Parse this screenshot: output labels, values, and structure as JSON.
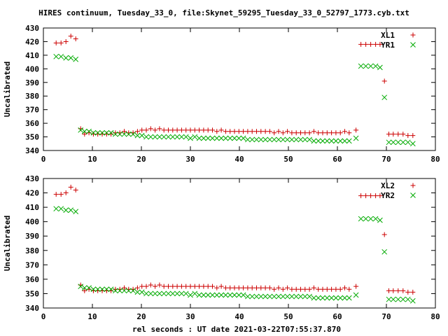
{
  "title": "HIRES continuum, Tuesday_33_0, file:Skynet_59295_Tuesday_33_0_52797_1773.cyb.txt",
  "xlabel": "rel seconds : UT date 2021-03-22T07:55:37.870",
  "colors": {
    "red": "#cc0000",
    "green": "#00aa00"
  },
  "chart_data": [
    {
      "type": "scatter",
      "ylabel": "Uncalibrated",
      "xlim": [
        0,
        80
      ],
      "ylim": [
        340,
        430
      ],
      "xticks": [
        0,
        10,
        20,
        30,
        40,
        50,
        60,
        70,
        80
      ],
      "yticks": [
        340,
        350,
        360,
        370,
        380,
        390,
        400,
        410,
        420,
        430
      ],
      "grid": false,
      "legend": "top-right",
      "series": [
        {
          "name": "XL1",
          "marker": "+",
          "color": "#cc0000",
          "x": [
            2.6,
            3.6,
            4.6,
            5.6,
            6.6,
            7.6,
            8.4,
            9.3,
            10.2,
            11.1,
            12.0,
            12.9,
            13.8,
            14.7,
            15.6,
            16.5,
            17.4,
            18.3,
            19.2,
            20.1,
            21.0,
            21.9,
            22.8,
            23.7,
            24.6,
            25.5,
            26.4,
            27.3,
            28.2,
            29.1,
            30.0,
            30.9,
            31.8,
            32.7,
            33.6,
            34.5,
            35.4,
            36.3,
            37.2,
            38.1,
            39.0,
            39.9,
            40.8,
            41.7,
            42.6,
            43.5,
            44.4,
            45.3,
            46.2,
            47.1,
            48.0,
            48.9,
            49.8,
            50.7,
            51.6,
            52.5,
            53.4,
            54.3,
            55.2,
            56.1,
            57.0,
            57.9,
            58.8,
            59.7,
            60.6,
            61.5,
            62.4,
            63.8,
            64.8,
            65.8,
            66.8,
            67.8,
            68.7,
            69.6,
            70.5,
            71.4,
            72.4,
            73.4,
            74.4,
            75.4
          ],
          "y": [
            419,
            419,
            420,
            424,
            422,
            356,
            352,
            353,
            352,
            352,
            352,
            352,
            352,
            353,
            353,
            354,
            353,
            353,
            354,
            355,
            355,
            356,
            355,
            356,
            355,
            355,
            355,
            355,
            355,
            355,
            355,
            355,
            355,
            355,
            355,
            355,
            354,
            355,
            354,
            354,
            354,
            354,
            354,
            354,
            354,
            354,
            354,
            354,
            354,
            353,
            354,
            353,
            354,
            353,
            353,
            353,
            353,
            353,
            354,
            353,
            353,
            353,
            353,
            353,
            353,
            354,
            353,
            355,
            418,
            418,
            418,
            418,
            418,
            391,
            352,
            352,
            352,
            352,
            351,
            351
          ]
        },
        {
          "name": "YR1",
          "marker": "x",
          "color": "#00aa00",
          "x": [
            2.6,
            3.6,
            4.6,
            5.6,
            6.6,
            7.6,
            8.4,
            9.3,
            10.2,
            11.1,
            12.0,
            12.9,
            13.8,
            14.7,
            15.6,
            16.5,
            17.4,
            18.3,
            19.2,
            20.1,
            21.0,
            21.9,
            22.8,
            23.7,
            24.6,
            25.5,
            26.4,
            27.3,
            28.2,
            29.1,
            30.0,
            30.9,
            31.8,
            32.7,
            33.6,
            34.5,
            35.4,
            36.3,
            37.2,
            38.1,
            39.0,
            39.9,
            40.8,
            41.7,
            42.6,
            43.5,
            44.4,
            45.3,
            46.2,
            47.1,
            48.0,
            48.9,
            49.8,
            50.7,
            51.6,
            52.5,
            53.4,
            54.3,
            55.2,
            56.1,
            57.0,
            57.9,
            58.8,
            59.7,
            60.6,
            61.5,
            62.4,
            63.8,
            64.8,
            65.8,
            66.8,
            67.8,
            68.7,
            69.6,
            70.5,
            71.4,
            72.4,
            73.4,
            74.4,
            75.4
          ],
          "y": [
            409,
            409,
            408,
            408,
            407,
            355,
            354,
            354,
            353,
            353,
            353,
            353,
            353,
            352,
            352,
            352,
            352,
            352,
            351,
            351,
            350,
            350,
            350,
            350,
            350,
            350,
            350,
            350,
            350,
            350,
            349,
            350,
            349,
            349,
            349,
            349,
            349,
            349,
            349,
            349,
            349,
            349,
            349,
            348,
            348,
            348,
            348,
            348,
            348,
            348,
            348,
            348,
            348,
            348,
            348,
            348,
            348,
            348,
            347,
            347,
            347,
            347,
            347,
            347,
            347,
            347,
            347,
            349,
            402,
            402,
            402,
            402,
            401,
            379,
            346,
            346,
            346,
            346,
            346,
            345
          ]
        }
      ]
    },
    {
      "type": "scatter",
      "ylabel": "Uncalibrated",
      "xlim": [
        0,
        80
      ],
      "ylim": [
        340,
        430
      ],
      "xticks": [
        0,
        10,
        20,
        30,
        40,
        50,
        60,
        70,
        80
      ],
      "yticks": [
        340,
        350,
        360,
        370,
        380,
        390,
        400,
        410,
        420,
        430
      ],
      "grid": false,
      "legend": "top-right",
      "series": [
        {
          "name": "XL2",
          "marker": "+",
          "color": "#cc0000",
          "x": [
            2.6,
            3.6,
            4.6,
            5.6,
            6.6,
            7.6,
            8.4,
            9.3,
            10.2,
            11.1,
            12.0,
            12.9,
            13.8,
            14.7,
            15.6,
            16.5,
            17.4,
            18.3,
            19.2,
            20.1,
            21.0,
            21.9,
            22.8,
            23.7,
            24.6,
            25.5,
            26.4,
            27.3,
            28.2,
            29.1,
            30.0,
            30.9,
            31.8,
            32.7,
            33.6,
            34.5,
            35.4,
            36.3,
            37.2,
            38.1,
            39.0,
            39.9,
            40.8,
            41.7,
            42.6,
            43.5,
            44.4,
            45.3,
            46.2,
            47.1,
            48.0,
            48.9,
            49.8,
            50.7,
            51.6,
            52.5,
            53.4,
            54.3,
            55.2,
            56.1,
            57.0,
            57.9,
            58.8,
            59.7,
            60.6,
            61.5,
            62.4,
            63.8,
            64.8,
            65.8,
            66.8,
            67.8,
            68.7,
            69.6,
            70.5,
            71.4,
            72.4,
            73.4,
            74.4,
            75.4
          ],
          "y": [
            419,
            419,
            420,
            424,
            422,
            356,
            352,
            353,
            352,
            352,
            352,
            352,
            352,
            353,
            353,
            354,
            353,
            353,
            354,
            355,
            355,
            356,
            355,
            356,
            355,
            355,
            355,
            355,
            355,
            355,
            355,
            355,
            355,
            355,
            355,
            355,
            354,
            355,
            354,
            354,
            354,
            354,
            354,
            354,
            354,
            354,
            354,
            354,
            354,
            353,
            354,
            353,
            354,
            353,
            353,
            353,
            353,
            353,
            354,
            353,
            353,
            353,
            353,
            353,
            353,
            354,
            353,
            355,
            418,
            418,
            418,
            418,
            418,
            391,
            352,
            352,
            352,
            352,
            351,
            351
          ]
        },
        {
          "name": "YR2",
          "marker": "x",
          "color": "#00aa00",
          "x": [
            2.6,
            3.6,
            4.6,
            5.6,
            6.6,
            7.6,
            8.4,
            9.3,
            10.2,
            11.1,
            12.0,
            12.9,
            13.8,
            14.7,
            15.6,
            16.5,
            17.4,
            18.3,
            19.2,
            20.1,
            21.0,
            21.9,
            22.8,
            23.7,
            24.6,
            25.5,
            26.4,
            27.3,
            28.2,
            29.1,
            30.0,
            30.9,
            31.8,
            32.7,
            33.6,
            34.5,
            35.4,
            36.3,
            37.2,
            38.1,
            39.0,
            39.9,
            40.8,
            41.7,
            42.6,
            43.5,
            44.4,
            45.3,
            46.2,
            47.1,
            48.0,
            48.9,
            49.8,
            50.7,
            51.6,
            52.5,
            53.4,
            54.3,
            55.2,
            56.1,
            57.0,
            57.9,
            58.8,
            59.7,
            60.6,
            61.5,
            62.4,
            63.8,
            64.8,
            65.8,
            66.8,
            67.8,
            68.7,
            69.6,
            70.5,
            71.4,
            72.4,
            73.4,
            74.4,
            75.4
          ],
          "y": [
            409,
            409,
            408,
            408,
            407,
            355,
            354,
            354,
            353,
            353,
            353,
            353,
            353,
            352,
            352,
            352,
            352,
            352,
            351,
            351,
            350,
            350,
            350,
            350,
            350,
            350,
            350,
            350,
            350,
            350,
            349,
            350,
            349,
            349,
            349,
            349,
            349,
            349,
            349,
            349,
            349,
            349,
            349,
            348,
            348,
            348,
            348,
            348,
            348,
            348,
            348,
            348,
            348,
            348,
            348,
            348,
            348,
            348,
            347,
            347,
            347,
            347,
            347,
            347,
            347,
            347,
            347,
            349,
            402,
            402,
            402,
            402,
            401,
            379,
            346,
            346,
            346,
            346,
            346,
            345
          ]
        }
      ]
    }
  ]
}
